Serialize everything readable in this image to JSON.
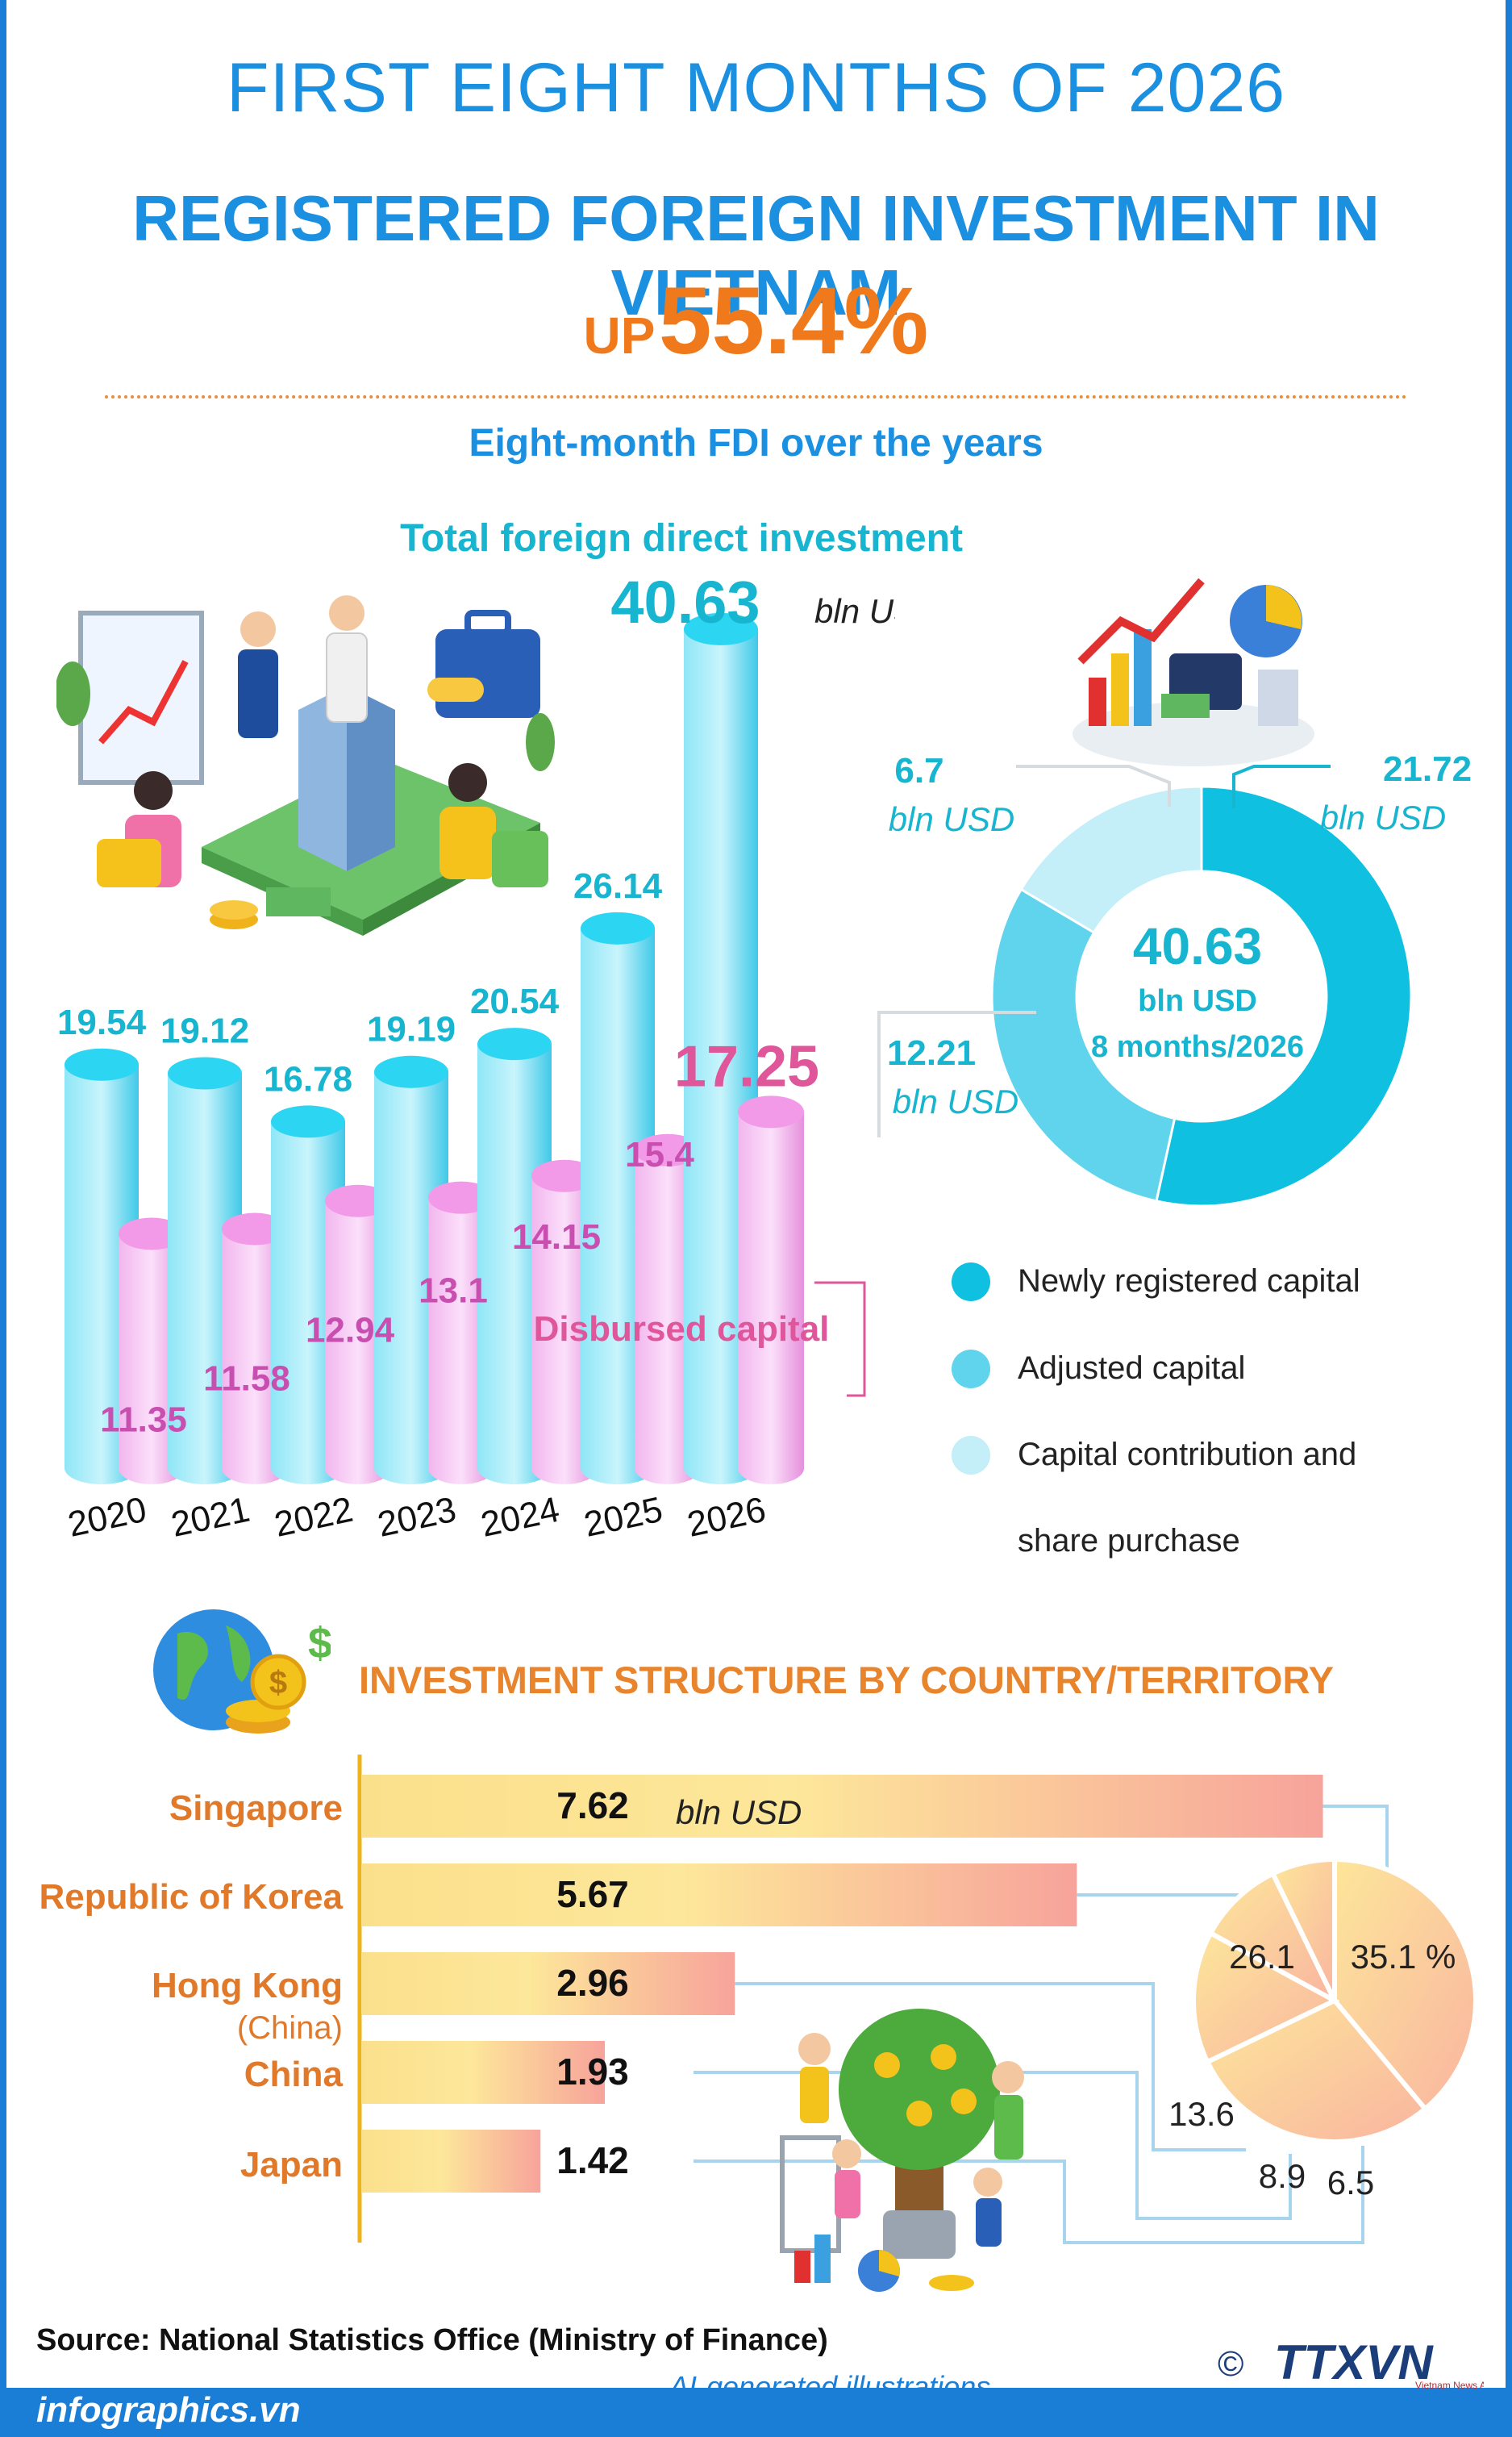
{
  "header": {
    "title_top": "FIRST EIGHT MONTHS OF 2026",
    "title_main": "REGISTERED FOREIGN INVESTMENT IN VIETNAM",
    "up_word": "UP",
    "up_value": "55.4%"
  },
  "section1": {
    "heading": "Eight-month FDI over the years",
    "subheading": "Total foreign direct investment",
    "total_value": "40.63",
    "total_unit": "bln USD",
    "disbursed_label": "Disbursed capital"
  },
  "donut": {
    "center_value": "40.63",
    "center_unit": "bln USD",
    "center_period": "8 months/2026",
    "legend": [
      "Newly registered capital",
      "Adjusted capital",
      "Capital contribution and",
      "share purchase"
    ]
  },
  "section2": {
    "heading": "INVESTMENT STRUCTURE BY COUNTRY/TERRITORY",
    "unit": "bln USD"
  },
  "footer": {
    "source": "Source: National Statistics Office (Ministry of Finance)",
    "ai_note": "AI-generated illustrations",
    "site": "infographics.vn",
    "copyright": "©",
    "agency": "TTXVN",
    "agency_sub": "Vietnam News Agency"
  },
  "chart_data": [
    {
      "type": "bar",
      "title": "Total foreign direct investment",
      "categories": [
        "2020",
        "2021",
        "2022",
        "2023",
        "2024",
        "2025",
        "2026"
      ],
      "series": [
        {
          "name": "",
          "values": [
            19.54,
            19.12,
            16.78,
            19.19,
            20.54,
            26.14,
            40.63
          ],
          "color": "#3fd0ef"
        },
        {
          "name": "Disbursed capital",
          "values": [
            11.35,
            11.58,
            12.94,
            13.1,
            14.15,
            15.4,
            17.25
          ],
          "color": "#f2a6e8"
        }
      ],
      "value_labels": {
        "total": [
          "19.54",
          "19.12",
          "16.78",
          "19.19",
          "20.54",
          "26.14",
          "40.63"
        ],
        "disbursed": [
          "11.35",
          "11.58",
          "12.94",
          "13.1",
          "14.15",
          "15.4",
          "17.25"
        ]
      },
      "ylim": [
        0,
        42
      ]
    },
    {
      "type": "pie",
      "labels": [
        "Newly registered capital",
        "Adjusted capital",
        "Capital contribution and share purchase"
      ],
      "values": [
        21.72,
        12.21,
        6.7
      ],
      "value_labels": [
        "21.72",
        "12.21",
        "6.7"
      ],
      "unit": "bln USD",
      "colors": [
        "#0fc0e0",
        "#5fd4ec",
        "#c4eff8"
      ]
    },
    {
      "type": "bar",
      "orientation": "horizontal",
      "categories": [
        "Singapore",
        "Republic of Korea",
        "Hong Kong",
        "China",
        "Japan"
      ],
      "category_sub": [
        "",
        "",
        "(China)",
        "",
        ""
      ],
      "values": [
        7.62,
        5.67,
        2.96,
        1.93,
        1.42
      ],
      "value_labels": [
        "7.62",
        "5.67",
        "2.96",
        "1.93",
        "1.42"
      ],
      "unit": "bln USD"
    },
    {
      "type": "pie",
      "labels": [
        "Singapore",
        "Republic of Korea",
        "Hong Kong (China)",
        "China",
        "Japan"
      ],
      "values": [
        35.1,
        26.1,
        13.6,
        8.9,
        6.5
      ],
      "value_labels": [
        "35.1 %",
        "26.1",
        "13.6",
        "8.9",
        "6.5"
      ]
    }
  ]
}
